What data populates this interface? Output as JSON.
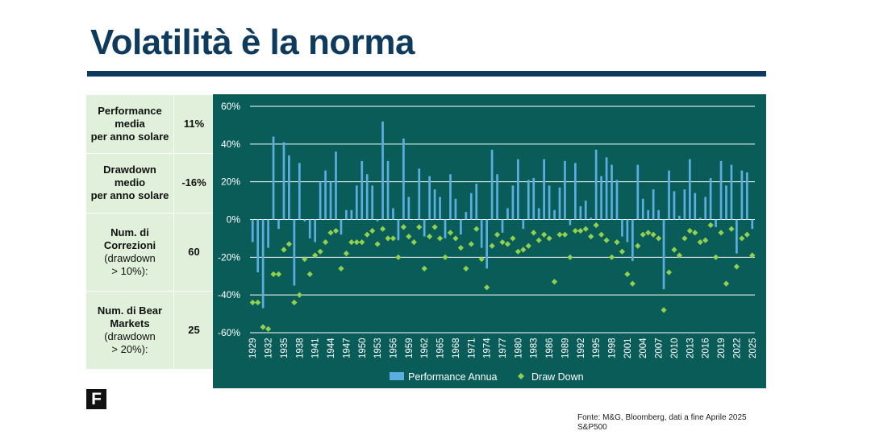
{
  "slide": {
    "title": "Volatilità è la norma"
  },
  "stats": [
    {
      "label_bold": [
        "Performance",
        "media",
        "per anno solare"
      ],
      "label_normal": [],
      "value": "11%"
    },
    {
      "label_bold": [
        "Drawdown",
        "medio",
        "per anno solare"
      ],
      "label_normal": [],
      "value": "-16%"
    },
    {
      "label_bold": [
        "Num. di",
        "Correzioni"
      ],
      "label_normal": [
        "(drawdown",
        "> 10%):"
      ],
      "value": "60"
    },
    {
      "label_bold": [
        "Num. di Bear",
        "Markets"
      ],
      "label_normal": [
        "(drawdown",
        "> 20%):"
      ],
      "value": "25"
    }
  ],
  "logo": {
    "text": "F"
  },
  "source": {
    "line1": "Fonte: M&G, Bloomberg, dati a fine Aprile 2025",
    "line2": "S&P500"
  },
  "colors": {
    "title": "#0e3a5e",
    "chart_bg": "#0a5c58",
    "bars": "#5aaee0",
    "markers": "#92d050",
    "table_bg": "#e1f0da"
  },
  "chart_data": {
    "type": "bar",
    "ylim": [
      -60,
      60
    ],
    "y_ticks": [
      60,
      40,
      20,
      0,
      -20,
      -40,
      -60
    ],
    "y_tick_format": "%",
    "grid": true,
    "legend_position": "bottom",
    "x_label_years": [
      "1929",
      "1932",
      "1935",
      "1938",
      "1941",
      "1944",
      "1947",
      "1950",
      "1953",
      "1956",
      "1959",
      "1962",
      "1965",
      "1968",
      "1971",
      "1974",
      "1977",
      "1980",
      "1983",
      "1986",
      "1989",
      "1992",
      "1995",
      "1998",
      "2001",
      "2004",
      "2007",
      "2010",
      "2013",
      "2016",
      "2019",
      "2022",
      "2025"
    ],
    "x": [
      1929,
      1930,
      1931,
      1932,
      1933,
      1934,
      1935,
      1936,
      1937,
      1938,
      1939,
      1940,
      1941,
      1942,
      1943,
      1944,
      1945,
      1946,
      1947,
      1948,
      1949,
      1950,
      1951,
      1952,
      1953,
      1954,
      1955,
      1956,
      1957,
      1958,
      1959,
      1960,
      1961,
      1962,
      1963,
      1964,
      1965,
      1966,
      1967,
      1968,
      1969,
      1970,
      1971,
      1972,
      1973,
      1974,
      1975,
      1976,
      1977,
      1978,
      1979,
      1980,
      1981,
      1982,
      1983,
      1984,
      1985,
      1986,
      1987,
      1988,
      1989,
      1990,
      1991,
      1992,
      1993,
      1994,
      1995,
      1996,
      1997,
      1998,
      1999,
      2000,
      2001,
      2002,
      2003,
      2004,
      2005,
      2006,
      2007,
      2008,
      2009,
      2010,
      2011,
      2012,
      2013,
      2014,
      2015,
      2016,
      2017,
      2018,
      2019,
      2020,
      2021,
      2022,
      2023,
      2024,
      2025
    ],
    "series": [
      {
        "name": "Performance Annua",
        "kind": "bar",
        "values": [
          -12,
          -28,
          -47,
          -15,
          44,
          -5,
          41,
          34,
          -35,
          30,
          -1,
          -10,
          -12,
          20,
          26,
          20,
          36,
          -8,
          5,
          5,
          18,
          31,
          24,
          18,
          -1,
          52,
          31,
          6,
          -11,
          43,
          12,
          0,
          27,
          -9,
          23,
          16,
          12,
          -10,
          24,
          11,
          -8,
          4,
          14,
          19,
          -15,
          -26,
          37,
          24,
          -7,
          6,
          18,
          32,
          -5,
          21,
          22,
          6,
          32,
          18,
          5,
          17,
          31,
          -3,
          30,
          7,
          10,
          1,
          37,
          23,
          33,
          29,
          21,
          -9,
          -12,
          -22,
          29,
          11,
          5,
          16,
          5,
          -37,
          26,
          15,
          2,
          16,
          32,
          14,
          1,
          12,
          22,
          -4,
          31,
          18,
          29,
          -18,
          26,
          25,
          -5
        ]
      },
      {
        "name": "Draw Down",
        "kind": "marker",
        "values": [
          -44,
          -44,
          -57,
          -58,
          -29,
          -29,
          -16,
          -13,
          -44,
          -40,
          -21,
          -29,
          -19,
          -17,
          -12,
          -7,
          -6,
          -26,
          -18,
          -12,
          -12,
          -12,
          -8,
          -6,
          -13,
          -5,
          -10,
          -10,
          -20,
          -4,
          -9,
          -12,
          -4,
          -26,
          -9,
          -4,
          -10,
          -20,
          -7,
          -10,
          -15,
          -26,
          -13,
          -5,
          -21,
          -36,
          -14,
          -8,
          -12,
          -13,
          -10,
          -17,
          -16,
          -14,
          -7,
          -11,
          -8,
          -10,
          -33,
          -8,
          -8,
          -20,
          -6,
          -6,
          -5,
          -9,
          -3,
          -8,
          -11,
          -20,
          -12,
          -17,
          -29,
          -34,
          -14,
          -8,
          -7,
          -8,
          -10,
          -48,
          -28,
          -16,
          -19,
          -10,
          -6,
          -7,
          -12,
          -11,
          -3,
          -20,
          -7,
          -34,
          -5,
          -25,
          -10,
          -8,
          -19
        ]
      }
    ]
  }
}
